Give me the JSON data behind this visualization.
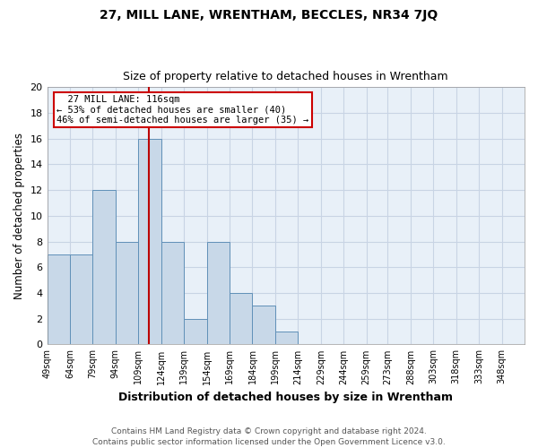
{
  "title1": "27, MILL LANE, WRENTHAM, BECCLES, NR34 7JQ",
  "title2": "Size of property relative to detached houses in Wrentham",
  "xlabel": "Distribution of detached houses by size in Wrentham",
  "ylabel": "Number of detached properties",
  "footer": "Contains HM Land Registry data © Crown copyright and database right 2024.\nContains public sector information licensed under the Open Government Licence v3.0.",
  "bin_labels": [
    "49sqm",
    "64sqm",
    "79sqm",
    "94sqm",
    "109sqm",
    "124sqm",
    "139sqm",
    "154sqm",
    "169sqm",
    "184sqm",
    "199sqm",
    "214sqm",
    "229sqm",
    "244sqm",
    "259sqm",
    "273sqm",
    "288sqm",
    "303sqm",
    "318sqm",
    "333sqm",
    "348sqm"
  ],
  "bin_edges": [
    49,
    64,
    79,
    94,
    109,
    124,
    139,
    154,
    169,
    184,
    199,
    214,
    229,
    244,
    259,
    273,
    288,
    303,
    318,
    333,
    348
  ],
  "bar_heights": [
    7,
    7,
    12,
    8,
    16,
    8,
    2,
    8,
    4,
    3,
    1,
    0,
    0,
    0,
    0,
    0,
    0,
    0,
    0,
    0
  ],
  "bar_color": "#c8d8e8",
  "bar_edge_color": "#6090b8",
  "property_value": 116,
  "red_line_color": "#bb0000",
  "annotation_text": "  27 MILL LANE: 116sqm\n← 53% of detached houses are smaller (40)\n46% of semi-detached houses are larger (35) →",
  "annotation_box_edge_color": "#cc0000",
  "ylim": [
    0,
    20
  ],
  "yticks": [
    0,
    2,
    4,
    6,
    8,
    10,
    12,
    14,
    16,
    18,
    20
  ],
  "grid_color": "#c8d4e4",
  "background_color": "#e8f0f8"
}
